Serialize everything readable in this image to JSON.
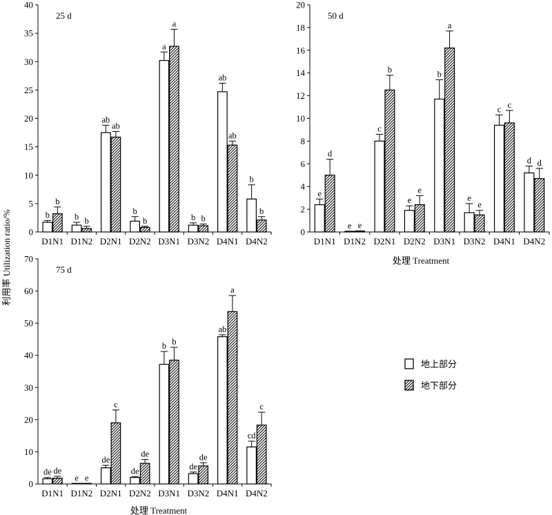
{
  "legend": [
    {
      "key": "above",
      "label": "地上部分",
      "pattern": "open"
    },
    {
      "key": "below",
      "label": "地下部分",
      "pattern": "hatched"
    }
  ],
  "y_axis_title": "利用率 Utilization ratio/%",
  "x_axis_title": "处理 Treatment",
  "chart_data": [
    {
      "type": "bar",
      "panel_label": "25 d",
      "categories": [
        "D1N1",
        "D1N2",
        "D2N1",
        "D2N2",
        "D3N1",
        "D3N2",
        "D4N1",
        "D4N2"
      ],
      "ylim": [
        0,
        40
      ],
      "yticks": [
        0,
        5,
        10,
        15,
        20,
        25,
        30,
        35,
        40
      ],
      "xlabel": "",
      "grid": false,
      "series": [
        {
          "name": "地上部分",
          "values": [
            1.7,
            1.2,
            17.5,
            1.9,
            30.2,
            1.2,
            24.7,
            5.8
          ],
          "errors": [
            0.3,
            0.5,
            1.3,
            0.8,
            1.5,
            0.4,
            1.5,
            2.5
          ],
          "letters": [
            "b",
            "b",
            "ab",
            "b",
            "a",
            "b",
            "ab",
            "b"
          ]
        },
        {
          "name": "地下部分",
          "values": [
            3.2,
            0.6,
            16.7,
            0.8,
            32.7,
            1.1,
            15.3,
            2.1
          ],
          "errors": [
            1.2,
            0.4,
            1.0,
            0.2,
            3.0,
            0.3,
            0.7,
            0.6
          ],
          "letters": [
            "b",
            "b",
            "ab",
            "b",
            "a",
            "b",
            "ab",
            "b"
          ]
        }
      ]
    },
    {
      "type": "bar",
      "panel_label": "50 d",
      "categories": [
        "D1N1",
        "D1N2",
        "D2N1",
        "D2N2",
        "D3N1",
        "D3N2",
        "D4N1",
        "D4N2"
      ],
      "ylim": [
        0,
        20
      ],
      "yticks": [
        0,
        2,
        4,
        6,
        8,
        10,
        12,
        14,
        16,
        18,
        20
      ],
      "xlabel": "处理 Treatment",
      "grid": false,
      "series": [
        {
          "name": "地上部分",
          "values": [
            2.4,
            0.05,
            8.0,
            1.9,
            11.7,
            1.7,
            9.4,
            5.2
          ],
          "errors": [
            0.5,
            0.02,
            0.6,
            0.4,
            1.7,
            0.8,
            0.9,
            0.6
          ],
          "letters": [
            "e",
            "e",
            "c",
            "e",
            "b",
            "e",
            "c",
            "d"
          ]
        },
        {
          "name": "地下部分",
          "values": [
            5.0,
            0.08,
            12.5,
            2.4,
            16.2,
            1.5,
            9.6,
            4.7
          ],
          "errors": [
            1.4,
            0.02,
            1.3,
            0.8,
            1.5,
            0.4,
            1.1,
            0.9
          ],
          "letters": [
            "d",
            "e",
            "b",
            "e",
            "a",
            "e",
            "c",
            "d"
          ]
        }
      ]
    },
    {
      "type": "bar",
      "panel_label": "75 d",
      "categories": [
        "D1N1",
        "D1N2",
        "D2N1",
        "D2N2",
        "D3N1",
        "D3N2",
        "D4N1",
        "D4N2"
      ],
      "ylim": [
        0,
        70
      ],
      "yticks": [
        0,
        10,
        20,
        30,
        40,
        50,
        60,
        70
      ],
      "xlabel": "处理 Treatment",
      "grid": false,
      "series": [
        {
          "name": "地上部分",
          "values": [
            1.6,
            0.1,
            5.0,
            2.0,
            37.2,
            3.2,
            45.8,
            11.5
          ],
          "errors": [
            0.4,
            0.05,
            0.8,
            0.3,
            4.0,
            0.5,
            0.6,
            1.8
          ],
          "letters": [
            "de",
            "e",
            "de",
            "de",
            "b",
            "de",
            "ab",
            "cd"
          ]
        },
        {
          "name": "地下部分",
          "values": [
            1.8,
            0.1,
            19.0,
            6.4,
            38.5,
            5.6,
            53.6,
            18.3
          ],
          "errors": [
            0.6,
            0.05,
            4.0,
            1.2,
            4.0,
            1.0,
            5.0,
            4.0
          ],
          "letters": [
            "de",
            "e",
            "c",
            "de",
            "b",
            "de",
            "a",
            "c"
          ]
        }
      ]
    }
  ]
}
